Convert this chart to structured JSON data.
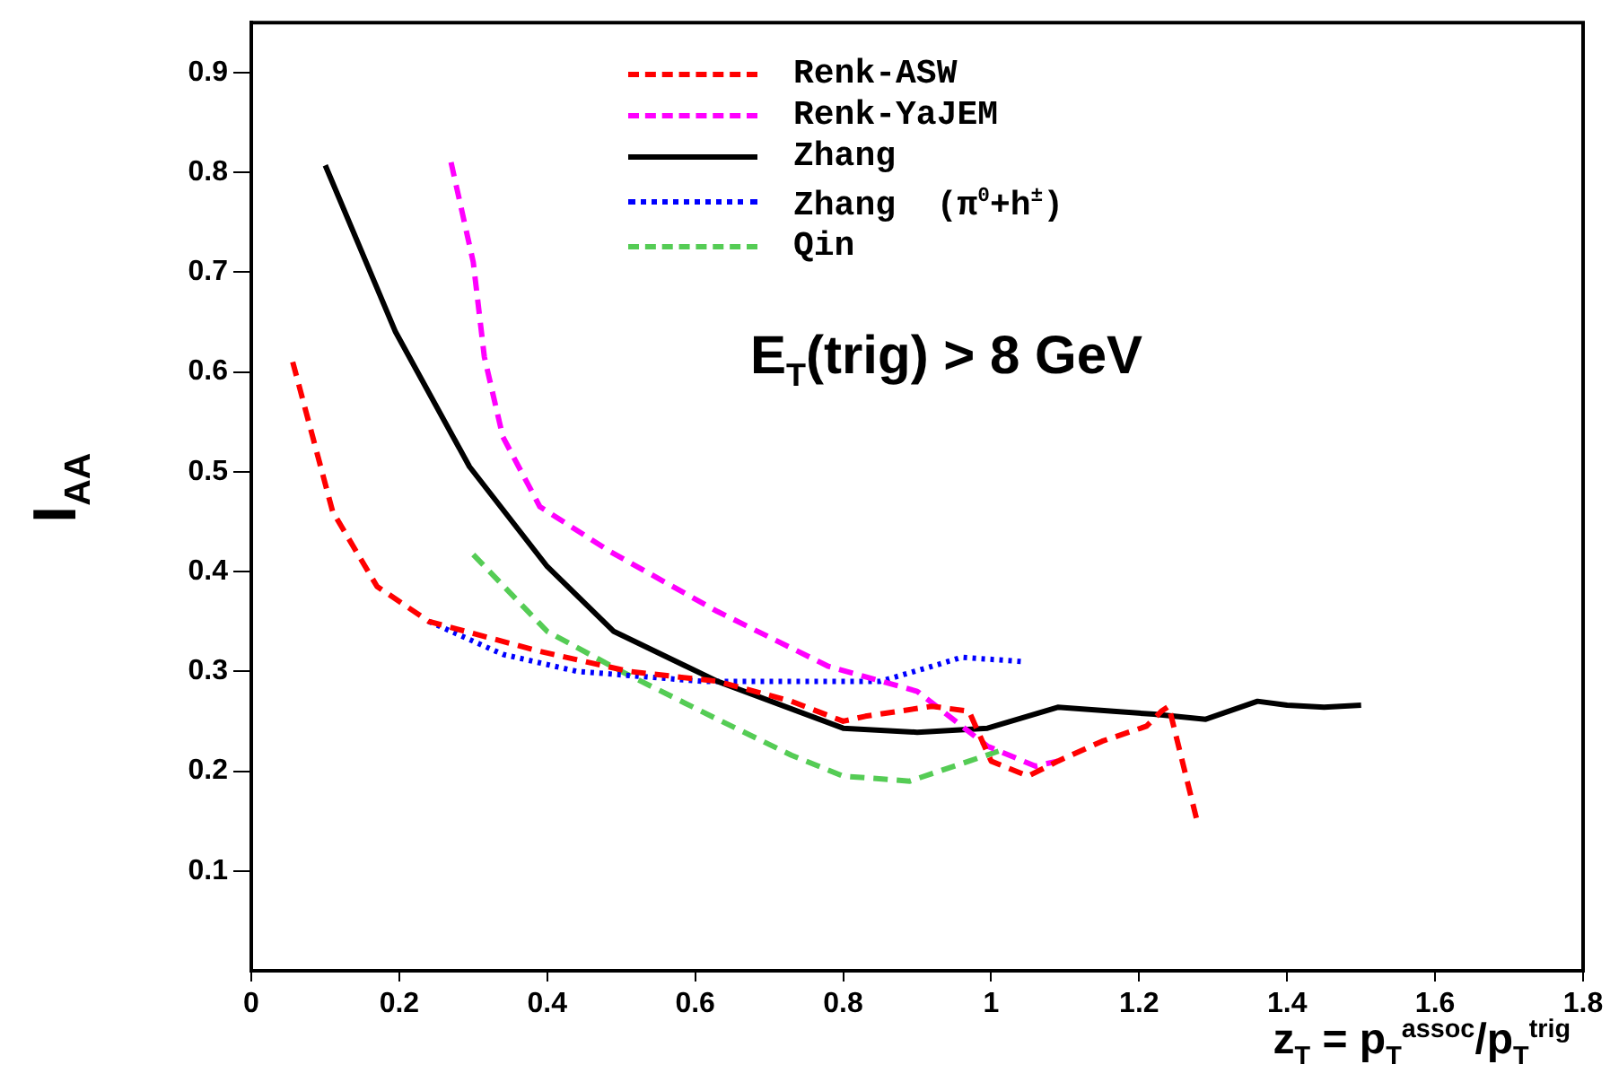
{
  "chart_data": {
    "type": "line",
    "xlabel": "z$_{T}$ = p$_{T}$$^{assoc}$/p$_{T}$$^{trig}$",
    "ylabel": "I$_{AA}$",
    "annotations": [
      "E$_{T}$(trig) > 8 GeV"
    ],
    "xlim": [
      0,
      1.8
    ],
    "xticks": [
      0,
      0.2,
      0.4,
      0.6,
      0.8,
      1,
      1.2,
      1.4,
      1.6,
      1.8
    ],
    "ylim": [
      0,
      0.95
    ],
    "yticks": [
      0.1,
      0.2,
      0.3,
      0.4,
      0.5,
      0.6,
      0.7,
      0.8,
      0.9
    ],
    "grid": false,
    "legend": "top",
    "marker": "none",
    "series": [
      {
        "name": "Renk-ASW",
        "color": "#ff0000",
        "line_style": "dashed",
        "x": [
          0.056,
          0.11,
          0.17,
          0.24,
          0.39,
          0.51,
          0.63,
          0.73,
          0.8,
          0.83,
          0.92,
          0.97,
          1.0,
          1.05,
          1.09,
          1.15,
          1.21,
          1.23,
          1.24,
          1.28
        ],
        "values": [
          0.61,
          0.46,
          0.385,
          0.35,
          0.32,
          0.3,
          0.29,
          0.27,
          0.25,
          0.255,
          0.265,
          0.26,
          0.21,
          0.195,
          0.21,
          0.23,
          0.245,
          0.26,
          0.265,
          0.145
        ]
      },
      {
        "name": "Renk-YaJEM",
        "color": "#ff00ff",
        "line_style": "dashed",
        "x": [
          0.27,
          0.3,
          0.315,
          0.34,
          0.39,
          0.485,
          0.63,
          0.78,
          0.9,
          0.995,
          1.06,
          1.09
        ],
        "values": [
          0.81,
          0.71,
          0.615,
          0.535,
          0.465,
          0.42,
          0.36,
          0.305,
          0.28,
          0.225,
          0.205,
          0.21
        ]
      },
      {
        "name": "Zhang",
        "color": "#000000",
        "line_style": "solid",
        "x": [
          0.1,
          0.195,
          0.295,
          0.4,
          0.49,
          0.63,
          0.8,
          0.9,
          0.995,
          1.09,
          1.165,
          1.22,
          1.29,
          1.36,
          1.4,
          1.45,
          1.5
        ],
        "values": [
          0.807,
          0.64,
          0.505,
          0.405,
          0.34,
          0.29,
          0.243,
          0.239,
          0.243,
          0.264,
          0.26,
          0.257,
          0.252,
          0.27,
          0.266,
          0.264,
          0.266
        ]
      },
      {
        "name": "Zhang  (π$^{0}$+h$^{±}$)",
        "color": "#0000ff",
        "line_style": "dotted",
        "x": [
          0.24,
          0.34,
          0.44,
          0.61,
          0.85,
          0.92,
          0.96,
          1.04
        ],
        "values": [
          0.35,
          0.317,
          0.3,
          0.29,
          0.29,
          0.305,
          0.314,
          0.31
        ]
      },
      {
        "name": "Qin",
        "color": "#55cc55",
        "line_style": "dashed",
        "x": [
          0.3,
          0.4,
          0.5,
          0.63,
          0.73,
          0.8,
          0.89,
          0.97,
          1.01
        ],
        "values": [
          0.417,
          0.34,
          0.3,
          0.252,
          0.216,
          0.195,
          0.19,
          0.21,
          0.22
        ]
      }
    ]
  }
}
